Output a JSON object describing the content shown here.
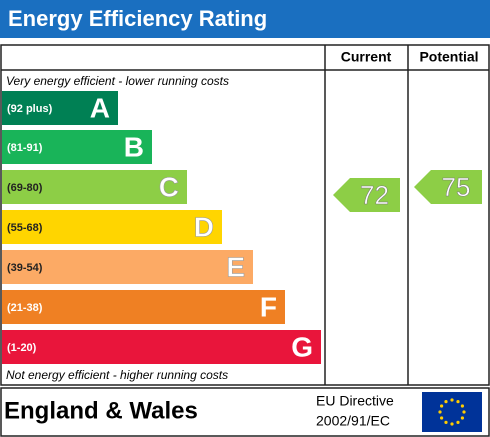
{
  "header": {
    "title": "Energy Efficiency Rating"
  },
  "columns": [
    "Current",
    "Potential"
  ],
  "top_note": "Very energy efficient - lower running costs",
  "bottom_note": "Not energy efficient - higher running costs",
  "bands": [
    {
      "range": "(92 plus)",
      "letter": "A",
      "color": "#008054"
    },
    {
      "range": "(81-91)",
      "letter": "B",
      "color": "#19b459"
    },
    {
      "range": "(69-80)",
      "letter": "C",
      "color": "#8dce46"
    },
    {
      "range": "(55-68)",
      "letter": "D",
      "color": "#ffd500"
    },
    {
      "range": "(39-54)",
      "letter": "E",
      "color": "#fcaa65"
    },
    {
      "range": "(21-38)",
      "letter": "F",
      "color": "#ef8023"
    },
    {
      "range": "(1-20)",
      "letter": "G",
      "color": "#e9153b"
    }
  ],
  "current": {
    "value": 72
  },
  "potential": {
    "value": 75
  },
  "footer": {
    "region": "England & Wales",
    "directive": [
      "EU Directive",
      "2002/91/EC"
    ]
  }
}
